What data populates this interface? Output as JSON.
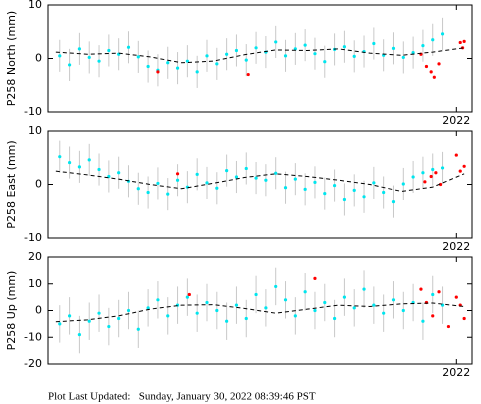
{
  "chart_data": [
    {
      "type": "scatter",
      "ylabel": "P258 North (mm)",
      "xlim": [
        2016.8,
        2022.2
      ],
      "xticks": [
        2022
      ],
      "ylim": [
        -10,
        10
      ],
      "yticks": [
        -10,
        0,
        10
      ],
      "series": [
        {
          "mode": "markers",
          "color": "#00e5ee",
          "error": 3,
          "x": [
            2016.95,
            2017.075,
            2017.2,
            2017.325,
            2017.45,
            2017.575,
            2017.7,
            2017.825,
            2017.95,
            2018.075,
            2018.2,
            2018.325,
            2018.45,
            2018.575,
            2018.7,
            2018.825,
            2018.95,
            2019.075,
            2019.2,
            2019.325,
            2019.45,
            2019.575,
            2019.7,
            2019.825,
            2019.95,
            2020.075,
            2020.2,
            2020.325,
            2020.45,
            2020.575,
            2020.7,
            2020.825,
            2020.95,
            2021.075,
            2021.2,
            2021.325,
            2021.45,
            2021.575,
            2021.7,
            2021.825
          ],
          "values": [
            0.5,
            -1.2,
            1.8,
            0.2,
            -0.5,
            1.5,
            0.8,
            2.1,
            0.3,
            -1.5,
            -2.2,
            -0.8,
            -1.8,
            -0.5,
            -2.5,
            0.5,
            -1.0,
            0.8,
            1.5,
            -0.3,
            2.0,
            1.2,
            3.1,
            0.5,
            1.8,
            2.5,
            0.9,
            -0.6,
            1.7,
            2.2,
            0.4,
            1.3,
            2.8,
            0.6,
            1.9,
            0.2,
            1.1,
            2.4,
            3.5,
            4.6
          ]
        },
        {
          "mode": "markers",
          "color": "#ff0000",
          "x": [
            2018.2,
            2019.35,
            2021.55,
            2021.62,
            2021.68,
            2021.72,
            2021.78,
            2022.05,
            2022.08,
            2022.1
          ],
          "values": [
            -2.5,
            -3.0,
            0.8,
            -1.5,
            -2.5,
            -3.5,
            -1.0,
            3.0,
            2.0,
            3.2
          ]
        },
        {
          "mode": "lines",
          "dash": true,
          "color": "#000000",
          "x": [
            2016.9,
            2017.3,
            2017.7,
            2018.1,
            2018.5,
            2018.9,
            2019.3,
            2019.7,
            2020.1,
            2020.5,
            2020.9,
            2021.3,
            2021.7,
            2022.1
          ],
          "values": [
            1.2,
            0.8,
            1.0,
            0.3,
            -0.8,
            -0.5,
            0.7,
            1.6,
            1.5,
            1.8,
            1.0,
            0.6,
            1.2,
            2.0
          ]
        }
      ]
    },
    {
      "type": "scatter",
      "ylabel": "P258 East (mm)",
      "xlim": [
        2016.8,
        2022.2
      ],
      "xticks": [
        2022
      ],
      "ylim": [
        -10,
        10
      ],
      "yticks": [
        -10,
        0,
        10
      ],
      "series": [
        {
          "mode": "markers",
          "color": "#00e5ee",
          "error": 3,
          "x": [
            2016.95,
            2017.075,
            2017.2,
            2017.325,
            2017.45,
            2017.575,
            2017.7,
            2017.825,
            2017.95,
            2018.075,
            2018.2,
            2018.325,
            2018.45,
            2018.575,
            2018.7,
            2018.825,
            2018.95,
            2019.075,
            2019.2,
            2019.325,
            2019.45,
            2019.575,
            2019.7,
            2019.825,
            2019.95,
            2020.075,
            2020.2,
            2020.325,
            2020.45,
            2020.575,
            2020.7,
            2020.825,
            2020.95,
            2021.075,
            2021.2,
            2021.325,
            2021.45,
            2021.575,
            2021.7,
            2021.825
          ],
          "values": [
            5.2,
            4.1,
            3.3,
            4.6,
            2.8,
            1.5,
            2.2,
            0.6,
            -0.8,
            -1.5,
            0.2,
            -1.8,
            0.8,
            -0.5,
            1.9,
            0.3,
            -0.7,
            2.6,
            1.4,
            3.0,
            1.2,
            0.8,
            2.1,
            -0.6,
            1.0,
            -0.9,
            0.4,
            -1.7,
            -0.2,
            -2.8,
            -1.1,
            -2.3,
            0.3,
            -1.5,
            -3.2,
            0.1,
            1.4,
            2.2,
            2.8,
            3.1
          ]
        },
        {
          "mode": "markers",
          "color": "#ff0000",
          "x": [
            2018.45,
            2021.6,
            2021.68,
            2021.74,
            2021.8,
            2022.0,
            2022.05,
            2022.1
          ],
          "values": [
            2.0,
            0.5,
            1.5,
            2.2,
            0.0,
            5.5,
            2.5,
            3.4
          ]
        },
        {
          "mode": "lines",
          "dash": true,
          "color": "#000000",
          "x": [
            2016.9,
            2017.3,
            2017.7,
            2018.1,
            2018.5,
            2018.9,
            2019.3,
            2019.7,
            2020.1,
            2020.5,
            2020.9,
            2021.3,
            2021.7,
            2022.1
          ],
          "values": [
            2.5,
            1.8,
            1.0,
            0.0,
            -0.8,
            0.2,
            1.3,
            2.0,
            1.5,
            0.8,
            0.0,
            -1.3,
            -0.5,
            2.0
          ]
        }
      ]
    },
    {
      "type": "scatter",
      "ylabel": "P258 Up (mm)",
      "xlim": [
        2016.8,
        2022.2
      ],
      "xticks": [
        2022
      ],
      "ylim": [
        -20,
        20
      ],
      "yticks": [
        -20,
        -10,
        0,
        10,
        20
      ],
      "series": [
        {
          "mode": "markers",
          "color": "#00e5ee",
          "error": 7,
          "x": [
            2016.95,
            2017.075,
            2017.2,
            2017.325,
            2017.45,
            2017.575,
            2017.7,
            2017.825,
            2017.95,
            2018.075,
            2018.2,
            2018.325,
            2018.45,
            2018.575,
            2018.7,
            2018.825,
            2018.95,
            2019.075,
            2019.2,
            2019.325,
            2019.45,
            2019.575,
            2019.7,
            2019.825,
            2019.95,
            2020.075,
            2020.2,
            2020.325,
            2020.45,
            2020.575,
            2020.7,
            2020.825,
            2020.95,
            2021.075,
            2021.2,
            2021.325,
            2021.45,
            2021.575,
            2021.7,
            2021.825
          ],
          "values": [
            -5,
            -2,
            -9,
            -4,
            -1,
            -6,
            -3,
            0,
            -7,
            1,
            4,
            -2,
            2,
            5,
            -1,
            3,
            0,
            -4,
            2,
            -3,
            6,
            1,
            9,
            4,
            -2,
            7,
            0,
            3,
            -3,
            5,
            1,
            8,
            2,
            -1,
            4,
            0,
            3,
            -4,
            6,
            2
          ]
        },
        {
          "mode": "markers",
          "color": "#ff0000",
          "x": [
            2018.6,
            2020.2,
            2021.55,
            2021.62,
            2021.7,
            2021.78,
            2021.9,
            2022.0,
            2022.05,
            2022.1
          ],
          "values": [
            6,
            12,
            8,
            3,
            -2,
            7,
            -6,
            5,
            2,
            -3
          ]
        },
        {
          "mode": "lines",
          "dash": true,
          "color": "#000000",
          "x": [
            2016.9,
            2017.3,
            2017.7,
            2018.1,
            2018.5,
            2018.9,
            2019.3,
            2019.7,
            2020.1,
            2020.5,
            2020.9,
            2021.3,
            2021.7,
            2022.1
          ],
          "values": [
            -4.2,
            -3.5,
            -2.0,
            0.5,
            2.0,
            2.2,
            0.8,
            -1.0,
            0.5,
            2.0,
            1.5,
            2.5,
            2.8,
            1.5
          ]
        }
      ]
    }
  ],
  "footer": "Plot Last Updated:   Sunday, January 30, 2022 08:39:46 PST"
}
